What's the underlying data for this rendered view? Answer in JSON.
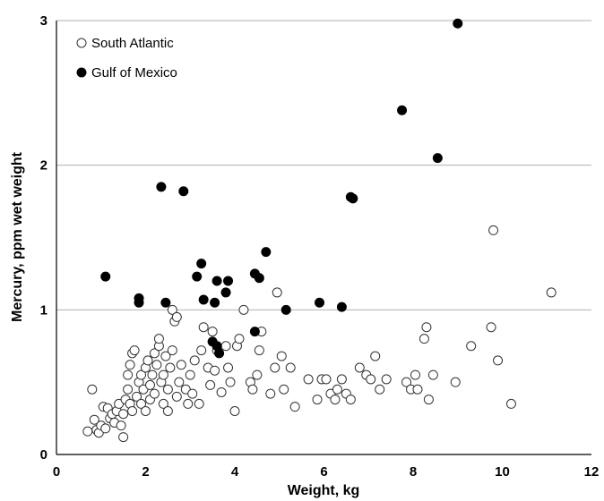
{
  "chart_data": {
    "type": "scatter",
    "title": "",
    "xlabel": "Weight, kg",
    "ylabel": "Mercury, ppm wet weight",
    "xlim": [
      0,
      12
    ],
    "ylim": [
      0,
      3
    ],
    "x_ticks": [
      "0",
      "2",
      "4",
      "6",
      "8",
      "10",
      "12"
    ],
    "y_ticks": [
      "0",
      "1",
      "2",
      "3"
    ],
    "grid": "horizontal",
    "legend_position": "top-left",
    "series": [
      {
        "name": "South Atlantic",
        "marker": "open-circle",
        "points": [
          [
            0.7,
            0.16
          ],
          [
            0.8,
            0.45
          ],
          [
            0.85,
            0.24
          ],
          [
            0.9,
            0.17
          ],
          [
            0.95,
            0.15
          ],
          [
            1.0,
            0.2
          ],
          [
            1.05,
            0.33
          ],
          [
            1.1,
            0.18
          ],
          [
            1.15,
            0.32
          ],
          [
            1.2,
            0.25
          ],
          [
            1.25,
            0.28
          ],
          [
            1.3,
            0.22
          ],
          [
            1.35,
            0.3
          ],
          [
            1.4,
            0.35
          ],
          [
            1.45,
            0.2
          ],
          [
            1.5,
            0.12
          ],
          [
            1.5,
            0.28
          ],
          [
            1.55,
            0.38
          ],
          [
            1.6,
            0.45
          ],
          [
            1.6,
            0.55
          ],
          [
            1.65,
            0.62
          ],
          [
            1.65,
            0.35
          ],
          [
            1.7,
            0.3
          ],
          [
            1.7,
            0.7
          ],
          [
            1.75,
            0.72
          ],
          [
            1.8,
            0.4
          ],
          [
            1.85,
            0.5
          ],
          [
            1.9,
            0.35
          ],
          [
            1.9,
            0.55
          ],
          [
            1.95,
            0.45
          ],
          [
            2.0,
            0.3
          ],
          [
            2.0,
            0.6
          ],
          [
            2.05,
            0.65
          ],
          [
            2.1,
            0.48
          ],
          [
            2.1,
            0.38
          ],
          [
            2.15,
            0.55
          ],
          [
            2.2,
            0.42
          ],
          [
            2.2,
            0.7
          ],
          [
            2.25,
            0.62
          ],
          [
            2.3,
            0.75
          ],
          [
            2.3,
            0.8
          ],
          [
            2.35,
            0.5
          ],
          [
            2.4,
            0.35
          ],
          [
            2.4,
            0.55
          ],
          [
            2.45,
            0.68
          ],
          [
            2.5,
            0.45
          ],
          [
            2.5,
            0.3
          ],
          [
            2.55,
            0.6
          ],
          [
            2.6,
            1.0
          ],
          [
            2.6,
            0.72
          ],
          [
            2.65,
            0.92
          ],
          [
            2.7,
            0.95
          ],
          [
            2.7,
            0.4
          ],
          [
            2.75,
            0.5
          ],
          [
            2.8,
            0.62
          ],
          [
            2.9,
            0.45
          ],
          [
            2.95,
            0.35
          ],
          [
            3.0,
            0.55
          ],
          [
            3.05,
            0.42
          ],
          [
            3.1,
            0.65
          ],
          [
            3.2,
            0.35
          ],
          [
            3.25,
            0.72
          ],
          [
            3.3,
            0.88
          ],
          [
            3.4,
            0.6
          ],
          [
            3.45,
            0.48
          ],
          [
            3.5,
            0.85
          ],
          [
            3.55,
            0.58
          ],
          [
            3.6,
            0.72
          ],
          [
            3.7,
            0.43
          ],
          [
            3.8,
            0.75
          ],
          [
            3.85,
            0.6
          ],
          [
            3.9,
            0.5
          ],
          [
            4.0,
            0.3
          ],
          [
            4.05,
            0.75
          ],
          [
            4.1,
            0.8
          ],
          [
            4.2,
            1.0
          ],
          [
            4.35,
            0.5
          ],
          [
            4.4,
            0.45
          ],
          [
            4.5,
            0.55
          ],
          [
            4.55,
            0.72
          ],
          [
            4.6,
            0.85
          ],
          [
            4.8,
            0.42
          ],
          [
            4.9,
            0.6
          ],
          [
            4.95,
            1.12
          ],
          [
            5.05,
            0.68
          ],
          [
            5.1,
            0.45
          ],
          [
            5.25,
            0.6
          ],
          [
            5.35,
            0.33
          ],
          [
            5.65,
            0.52
          ],
          [
            5.85,
            0.38
          ],
          [
            5.95,
            0.52
          ],
          [
            6.05,
            0.52
          ],
          [
            6.15,
            0.42
          ],
          [
            6.25,
            0.38
          ],
          [
            6.3,
            0.45
          ],
          [
            6.4,
            0.52
          ],
          [
            6.5,
            0.42
          ],
          [
            6.6,
            0.38
          ],
          [
            6.8,
            0.6
          ],
          [
            6.95,
            0.55
          ],
          [
            7.05,
            0.52
          ],
          [
            7.15,
            0.68
          ],
          [
            7.25,
            0.45
          ],
          [
            7.4,
            0.52
          ],
          [
            7.85,
            0.5
          ],
          [
            7.95,
            0.45
          ],
          [
            8.05,
            0.55
          ],
          [
            8.1,
            0.45
          ],
          [
            8.25,
            0.8
          ],
          [
            8.3,
            0.88
          ],
          [
            8.35,
            0.38
          ],
          [
            8.45,
            0.55
          ],
          [
            8.95,
            0.5
          ],
          [
            9.3,
            0.75
          ],
          [
            9.75,
            0.88
          ],
          [
            9.8,
            1.55
          ],
          [
            9.9,
            0.65
          ],
          [
            10.2,
            0.35
          ],
          [
            11.1,
            1.12
          ]
        ]
      },
      {
        "name": "Gulf of Mexico",
        "marker": "filled-circle",
        "points": [
          [
            1.1,
            1.23
          ],
          [
            1.85,
            1.05
          ],
          [
            1.85,
            1.08
          ],
          [
            2.35,
            1.85
          ],
          [
            2.45,
            1.05
          ],
          [
            2.85,
            1.82
          ],
          [
            3.15,
            1.23
          ],
          [
            3.25,
            1.32
          ],
          [
            3.3,
            1.07
          ],
          [
            3.5,
            0.78
          ],
          [
            3.55,
            1.05
          ],
          [
            3.6,
            0.75
          ],
          [
            3.6,
            1.2
          ],
          [
            3.65,
            0.7
          ],
          [
            3.8,
            1.12
          ],
          [
            3.85,
            1.2
          ],
          [
            4.45,
            1.25
          ],
          [
            4.45,
            0.85
          ],
          [
            4.55,
            1.22
          ],
          [
            4.7,
            1.4
          ],
          [
            5.15,
            1.0
          ],
          [
            5.9,
            1.05
          ],
          [
            6.4,
            1.02
          ],
          [
            6.6,
            1.78
          ],
          [
            6.65,
            1.77
          ],
          [
            7.75,
            2.38
          ],
          [
            8.55,
            2.05
          ],
          [
            9.0,
            2.98
          ]
        ]
      }
    ]
  },
  "legend": {
    "items": [
      {
        "label": "South Atlantic",
        "marker": "open-circle"
      },
      {
        "label": "Gulf of Mexico",
        "marker": "filled-circle"
      }
    ]
  }
}
